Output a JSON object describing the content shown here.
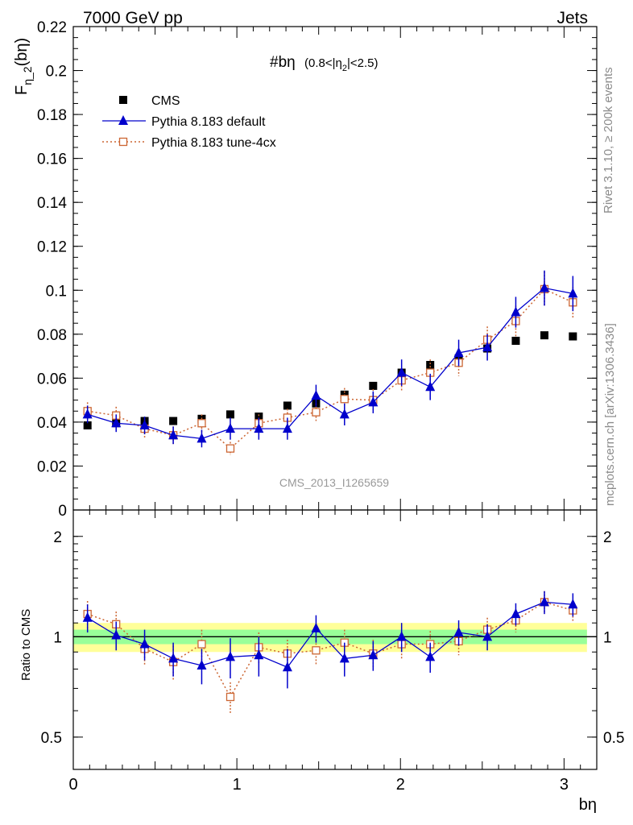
{
  "header": {
    "left": "7000 GeV pp",
    "right": "Jets"
  },
  "annotations": {
    "rivet": "Rivet 3.1.10, ≥ 200k events",
    "mcplots": "mcplots.cern.ch [arXiv:1306.3436]",
    "analysis_id": "CMS_2013_I1265659"
  },
  "chart_data": [
    {
      "type": "scatter",
      "panel": "main",
      "title_main": "#bη",
      "title_sub": "(0.8<|η",
      "title_sub_index": "2",
      "title_sub_end": "|<2.5)",
      "ylabel": "F",
      "ylabel_sub": "η_2",
      "ylabel_end": "(bη)",
      "xlim": [
        0,
        3.2
      ],
      "ylim": [
        0,
        0.22
      ],
      "yticks": [
        0,
        0.02,
        0.04,
        0.06,
        0.08,
        0.1,
        0.12,
        0.14,
        0.16,
        0.18,
        0.2,
        0.22
      ],
      "ytick_labels": [
        "0",
        "0.02",
        "0.04",
        "0.06",
        "0.08",
        "0.1",
        "0.12",
        "0.14",
        "0.16",
        "0.18",
        "0.2",
        "0.22"
      ],
      "x": [
        0.087,
        0.262,
        0.436,
        0.611,
        0.785,
        0.96,
        1.134,
        1.309,
        1.484,
        1.658,
        1.833,
        2.007,
        2.182,
        2.356,
        2.531,
        2.705,
        2.88,
        3.054
      ],
      "series": [
        {
          "name": "CMS",
          "values": [
            0.0385,
            0.0395,
            0.0405,
            0.0405,
            0.0415,
            0.0435,
            0.0425,
            0.0475,
            0.0485,
            0.0525,
            0.0565,
            0.0625,
            0.066,
            0.069,
            0.0735,
            0.077,
            0.0795,
            0.079
          ],
          "errors": [
            0,
            0,
            0,
            0,
            0,
            0,
            0,
            0,
            0,
            0,
            0,
            0,
            0,
            0,
            0,
            0,
            0,
            0
          ],
          "color": "#000000",
          "marker": "filled-square",
          "line": "none"
        },
        {
          "name": "Pythia 8.183 default",
          "values": [
            0.0435,
            0.0395,
            0.0385,
            0.034,
            0.0325,
            0.037,
            0.037,
            0.037,
            0.052,
            0.0435,
            0.049,
            0.0625,
            0.056,
            0.0715,
            0.074,
            0.09,
            0.101,
            0.0985
          ],
          "errors": [
            0.004,
            0.004,
            0.004,
            0.004,
            0.004,
            0.005,
            0.005,
            0.005,
            0.005,
            0.005,
            0.005,
            0.006,
            0.006,
            0.006,
            0.006,
            0.007,
            0.008,
            0.008
          ],
          "color": "#0000cc",
          "marker": "filled-triangle",
          "line": "solid"
        },
        {
          "name": "Pythia 8.183 tune-4cx",
          "values": [
            0.045,
            0.043,
            0.037,
            0.034,
            0.0395,
            0.028,
            0.0395,
            0.042,
            0.0445,
            0.0505,
            0.05,
            0.059,
            0.0625,
            0.067,
            0.0775,
            0.086,
            0.1005,
            0.0945
          ],
          "errors": [
            0.004,
            0.004,
            0.004,
            0.004,
            0.004,
            0.003,
            0.004,
            0.004,
            0.004,
            0.005,
            0.005,
            0.005,
            0.006,
            0.006,
            0.006,
            0.007,
            0.008,
            0.007
          ],
          "color": "#cc6633",
          "marker": "open-square",
          "line": "dotted"
        }
      ]
    },
    {
      "type": "scatter",
      "panel": "ratio",
      "ylabel": "Ratio to CMS",
      "xlabel": "bη",
      "xlim": [
        0,
        3.2
      ],
      "ylim": [
        0.4,
        2.4
      ],
      "yscale": "log",
      "yticks": [
        0.5,
        1,
        2
      ],
      "ytick_labels": [
        "0.5",
        "1",
        "2"
      ],
      "xticks": [
        0,
        1,
        2,
        3
      ],
      "xtick_labels": [
        "0",
        "1",
        "2",
        "3"
      ],
      "band_inner": [
        0.05,
        0.05,
        0.05,
        0.05,
        0.05,
        0.05,
        0.05,
        0.05,
        0.05,
        0.05,
        0.05,
        0.05,
        0.05,
        0.05,
        0.05,
        0.05,
        0.05,
        0.05
      ],
      "band_outer": [
        0.1,
        0.1,
        0.1,
        0.1,
        0.1,
        0.1,
        0.1,
        0.1,
        0.1,
        0.1,
        0.1,
        0.1,
        0.1,
        0.1,
        0.1,
        0.1,
        0.1,
        0.1
      ],
      "series": [
        {
          "name": "Pythia 8.183 default",
          "values": [
            1.14,
            1.01,
            0.95,
            0.86,
            0.82,
            0.87,
            0.88,
            0.81,
            1.06,
            0.86,
            0.88,
            1.0,
            0.87,
            1.03,
            1.0,
            1.17,
            1.27,
            1.25
          ],
          "errors": [
            0.11,
            0.1,
            0.1,
            0.1,
            0.1,
            0.12,
            0.12,
            0.11,
            0.1,
            0.1,
            0.09,
            0.1,
            0.09,
            0.09,
            0.09,
            0.09,
            0.1,
            0.1
          ],
          "color": "#0000cc",
          "marker": "filled-triangle",
          "line": "solid"
        },
        {
          "name": "Pythia 8.183 tune-4cx",
          "values": [
            1.17,
            1.09,
            0.92,
            0.84,
            0.95,
            0.66,
            0.93,
            0.89,
            0.91,
            0.96,
            0.89,
            0.95,
            0.95,
            0.97,
            1.05,
            1.12,
            1.27,
            1.2
          ],
          "errors": [
            0.11,
            0.1,
            0.1,
            0.1,
            0.1,
            0.07,
            0.1,
            0.09,
            0.09,
            0.09,
            0.09,
            0.09,
            0.09,
            0.09,
            0.09,
            0.09,
            0.1,
            0.09
          ],
          "color": "#cc6633",
          "marker": "open-square",
          "line": "dotted"
        }
      ]
    }
  ]
}
